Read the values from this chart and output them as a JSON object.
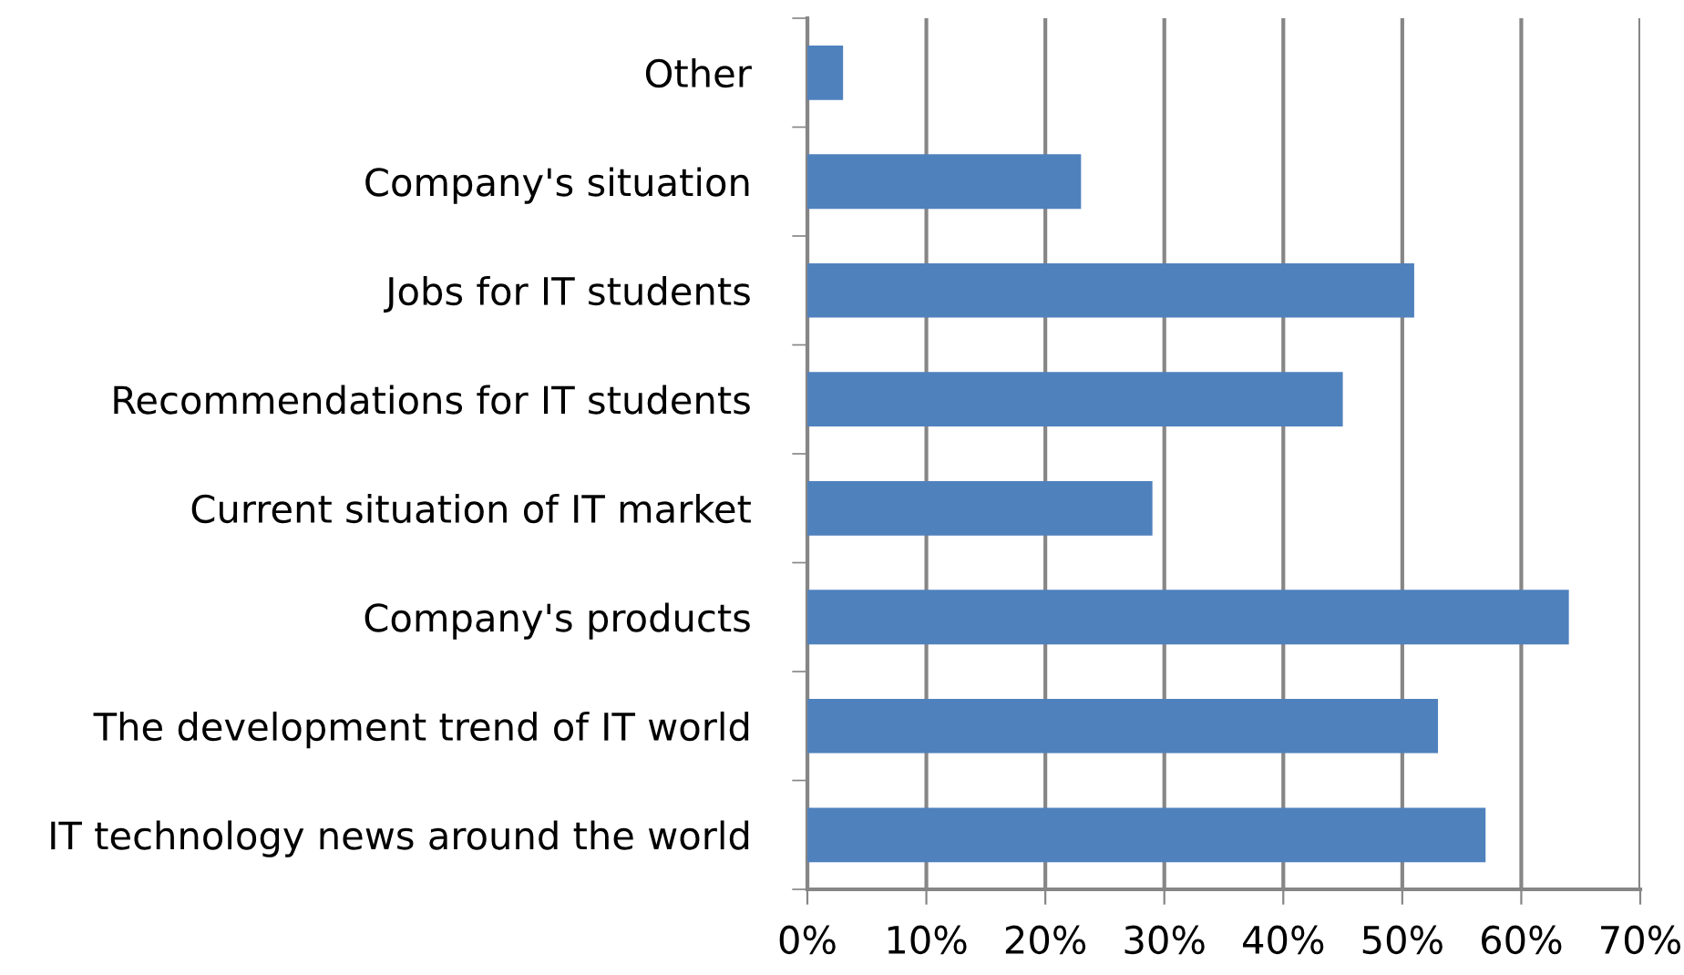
{
  "chart_data": {
    "type": "bar",
    "orientation": "horizontal",
    "categories": [
      "Other",
      "Company's situation",
      "Jobs for IT students",
      "Recommendations for IT students",
      "Current situation of IT market",
      "Company's products",
      "The development trend of IT world",
      "IT technology news around the world"
    ],
    "values": [
      3,
      23,
      51,
      45,
      29,
      64,
      53,
      57
    ],
    "color": "#4f81bd",
    "xlim": [
      0,
      70
    ],
    "xticks": [
      {
        "value": 0,
        "label": "0%"
      },
      {
        "value": 10,
        "label": "10%"
      },
      {
        "value": 20,
        "label": "20%"
      },
      {
        "value": 30,
        "label": "30%"
      },
      {
        "value": 40,
        "label": "40%"
      },
      {
        "value": 50,
        "label": "50%"
      },
      {
        "value": 60,
        "label": "60%"
      },
      {
        "value": 70,
        "label": "70%"
      }
    ],
    "grid": "x"
  }
}
